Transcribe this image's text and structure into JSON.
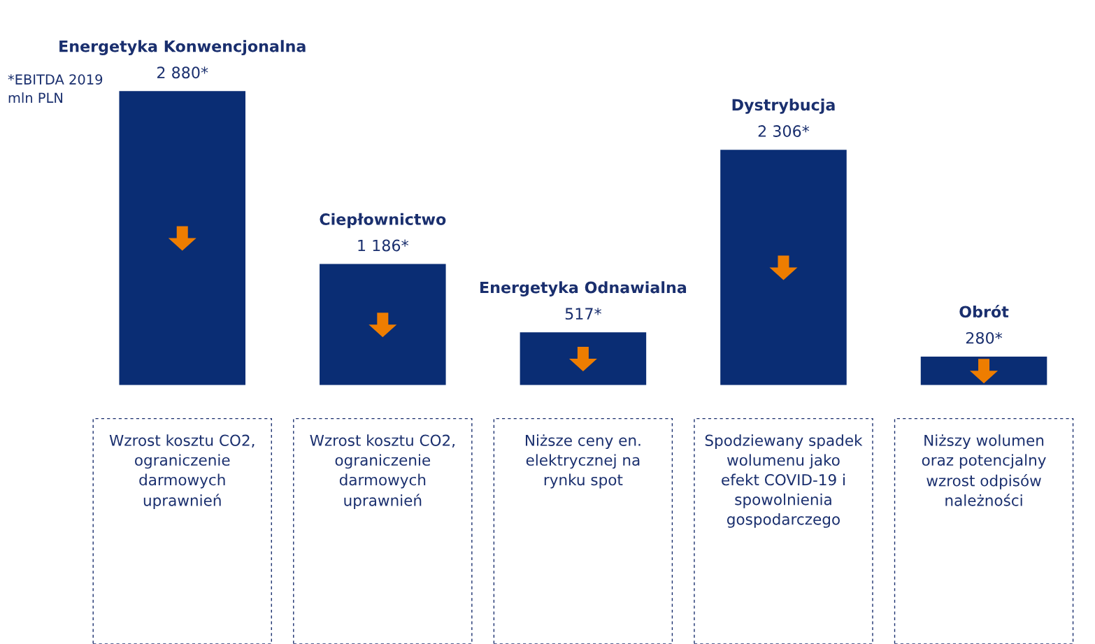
{
  "chart_data": {
    "type": "bar",
    "categories": [
      "Energetyka Konwencjonalna",
      "Ciepłownictwo",
      "Energetyka Odnawialna",
      "Dystrybucja",
      "Obrót"
    ],
    "values": [
      2880,
      1186,
      517,
      2306,
      280
    ],
    "value_labels": [
      "2 880*",
      "1 186*",
      "517*",
      "2 306*",
      "280*"
    ],
    "color": "#0a2d74",
    "annotations": [
      "*EBITDA 2019\nmln PLN",
      "Wzrost kosztu CO2,\nograniczenie\ndarmowych\nuprawnień",
      "Wzrost kosztu CO2,\nograniczenie\ndarmowych\nuprawnień",
      "Niższe ceny en.\nelektrycznej na\nrynku spot",
      "Spodziewany spadek\nwolumenu jako\nefekt COVID-19 i\nspowolnienia\ngospodarczego",
      "Niższy wolumen\noraz potencjalny\nwzrost odpisów\nnależności"
    ],
    "legend": false
  }
}
